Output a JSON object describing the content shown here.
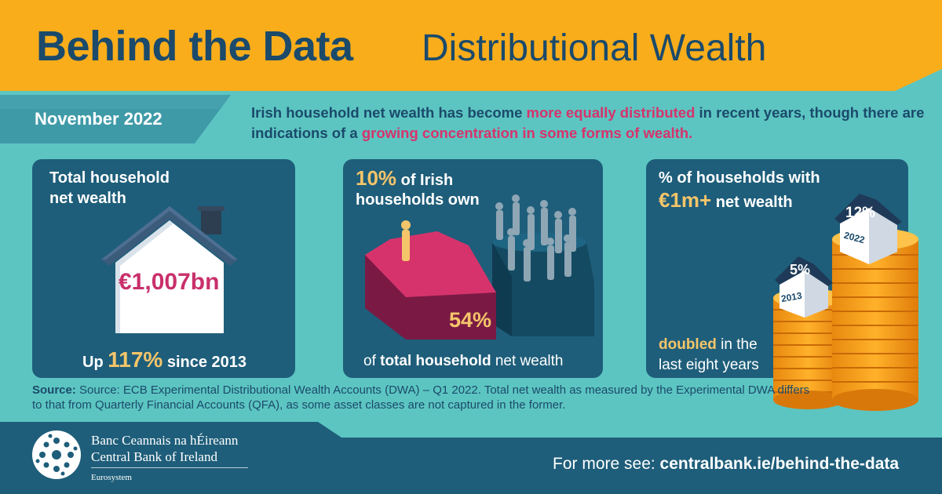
{
  "header": {
    "title_bold": "Behind the Data",
    "title_light": "Distributional Wealth"
  },
  "date": "November 2022",
  "intro": {
    "part1": "Irish household net wealth has become ",
    "highlight1": "more equally distributed",
    "part2": " in recent years, though there are indications of a ",
    "highlight2": "growing concentration in some forms of wealth."
  },
  "panel_total": {
    "heading_line1": "Total household",
    "heading_line2": "net wealth",
    "value": "€1,007bn",
    "footer_prefix": "Up ",
    "footer_percent": "117%",
    "footer_suffix": " since 2013"
  },
  "panel_share": {
    "heading_pct": "10%",
    "heading_rest1": " of Irish",
    "heading_line2": "households own",
    "value": "54%",
    "footer_prefix": "of ",
    "footer_bold": "total household",
    "footer_suffix": " net wealth"
  },
  "panel_million": {
    "heading_line1": "% of households with",
    "heading_value": "€1m+",
    "heading_rest": " net wealth",
    "house_2013_pct": "5%",
    "house_2013_year": "2013",
    "house_2022_pct": "12%",
    "house_2022_year": "2022",
    "footer_bold": "doubled",
    "footer_rest1": " in the",
    "footer_line2": "last eight years"
  },
  "source": {
    "label": "Source:",
    "text": " Source: ECB Experimental Distributional Wealth Accounts (DWA) – Q1 2022. Total net wealth as measured by the Experimental DWA differs to that from Quarterly Financial Accounts (QFA), as some asset classes are not captured in the former."
  },
  "footer": {
    "bank_irish": "Banc Ceannais na hÉireann",
    "bank_english": "Central Bank of Ireland",
    "eurosystem": "Eurosystem",
    "more_prefix": "For more see: ",
    "more_link": "centralbank.ie/behind-the-data"
  },
  "colors": {
    "header_bg": "#f9ad1b",
    "navy": "#1b4a6b",
    "teal_bg": "#5cc5c1",
    "panel_bg": "#1e5e7a",
    "magenta": "#d6336c",
    "gold": "#f5c56a"
  }
}
